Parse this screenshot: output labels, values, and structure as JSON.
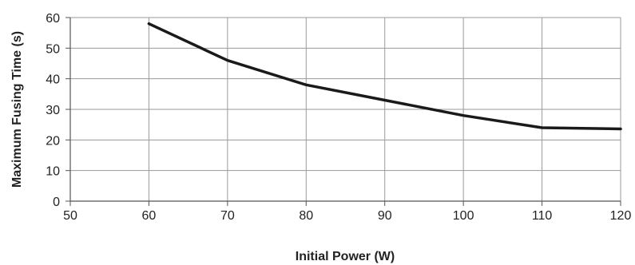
{
  "chart_data": {
    "type": "line",
    "xlabel": "Initial Power (W)",
    "ylabel": "Maximum Fusing Time (s)",
    "xlim": [
      50,
      120
    ],
    "ylim": [
      0,
      60
    ],
    "x_ticks": [
      50,
      60,
      70,
      80,
      90,
      100,
      110,
      120
    ],
    "y_ticks": [
      0,
      10,
      20,
      30,
      40,
      50,
      60
    ],
    "grid": true,
    "legend": "none",
    "series": [
      {
        "x": [
          60,
          70,
          80,
          90,
          100,
          110,
          120
        ],
        "y": [
          58,
          46,
          38,
          33,
          28,
          24,
          23.6
        ],
        "color": "#1a1a1a"
      }
    ]
  }
}
